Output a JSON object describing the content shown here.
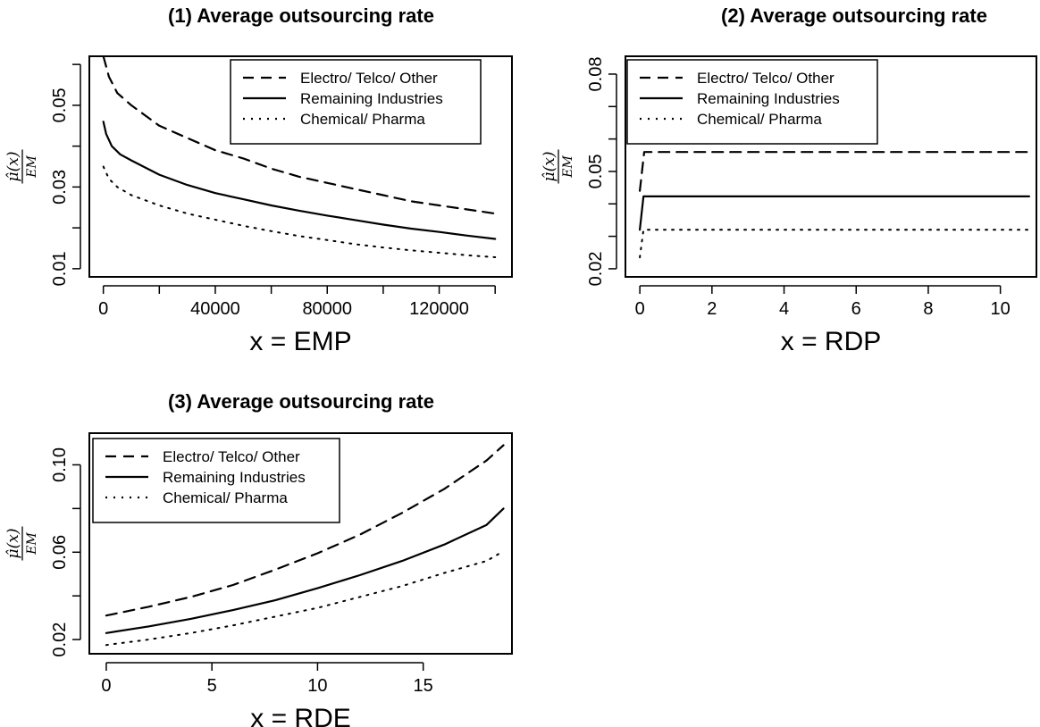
{
  "chart_data": [
    {
      "type": "line",
      "title": "(1) Average outsourcing rate",
      "xlabel": "x =  EMP",
      "ylabel": {
        "numerator": "μ̂(x)",
        "denominator": "EM"
      },
      "xlim": [
        -5000,
        146000
      ],
      "ylim": [
        0.008,
        0.062
      ],
      "xticks": [
        0,
        40000,
        80000,
        120000
      ],
      "xtick_labels": [
        "0",
        "40000",
        "80000",
        "120000"
      ],
      "xticks_minor": [
        20000,
        60000,
        100000,
        140000
      ],
      "yticks": [
        0.01,
        0.03,
        0.05
      ],
      "ytick_labels": [
        "0.01",
        "0.03",
        "0.05"
      ],
      "yticks_minor": [
        0.02,
        0.04,
        0.06
      ],
      "grid": false,
      "legend": {
        "position": "top-right",
        "entries": [
          "Electro/ Telco/ Other",
          "Remaining Industries",
          "Chemical/ Pharma"
        ]
      },
      "series": [
        {
          "name": "Electro/ Telco/ Other",
          "linestyle": "dashed",
          "x": [
            0,
            2000,
            5000,
            10000,
            20000,
            30000,
            40000,
            50000,
            60000,
            70000,
            80000,
            90000,
            100000,
            110000,
            120000,
            130000,
            140000
          ],
          "y": [
            0.062,
            0.057,
            0.053,
            0.05,
            0.045,
            0.042,
            0.039,
            0.037,
            0.0345,
            0.0325,
            0.031,
            0.0295,
            0.028,
            0.0265,
            0.0255,
            0.0245,
            0.0235
          ]
        },
        {
          "name": "Remaining Industries",
          "linestyle": "solid",
          "x": [
            0,
            1000,
            3000,
            6000,
            10000,
            20000,
            30000,
            40000,
            50000,
            60000,
            70000,
            80000,
            90000,
            100000,
            110000,
            120000,
            130000,
            140000
          ],
          "y": [
            0.046,
            0.043,
            0.04,
            0.038,
            0.0365,
            0.033,
            0.0305,
            0.0285,
            0.027,
            0.0255,
            0.0242,
            0.023,
            0.0219,
            0.0208,
            0.0198,
            0.019,
            0.0181,
            0.0173
          ]
        },
        {
          "name": "Chemical/ Pharma",
          "linestyle": "dotted",
          "x": [
            0,
            2000,
            5000,
            10000,
            20000,
            30000,
            40000,
            50000,
            60000,
            70000,
            80000,
            90000,
            100000,
            110000,
            120000,
            130000,
            140000
          ],
          "y": [
            0.035,
            0.032,
            0.03,
            0.028,
            0.0255,
            0.0235,
            0.022,
            0.0205,
            0.0192,
            0.018,
            0.017,
            0.016,
            0.0152,
            0.0145,
            0.0139,
            0.0133,
            0.0128
          ]
        }
      ]
    },
    {
      "type": "line",
      "title": "(2) Average outsourcing rate",
      "xlabel": "x =  RDP",
      "ylabel": {
        "numerator": "μ̂(x)",
        "denominator": "EM"
      },
      "xlim": [
        -0.4,
        11.0
      ],
      "ylim": [
        0.0175,
        0.0855
      ],
      "xticks": [
        0,
        2,
        4,
        6,
        8,
        10
      ],
      "xtick_labels": [
        "0",
        "2",
        "4",
        "6",
        "8",
        "10"
      ],
      "xticks_minor": [],
      "yticks": [
        0.02,
        0.05,
        0.08
      ],
      "ytick_labels": [
        "0.02",
        "0.05",
        "0.08"
      ],
      "yticks_minor": [
        0.03,
        0.04,
        0.06,
        0.07
      ],
      "grid": false,
      "legend": {
        "position": "top-left",
        "entries": [
          "Electro/ Telco/ Other",
          "Remaining Industries",
          "Chemical/ Pharma"
        ]
      },
      "series": [
        {
          "name": "Electro/ Telco/ Other",
          "linestyle": "dashed",
          "x": [
            0,
            0.12,
            10.8
          ],
          "y": [
            0.044,
            0.056,
            0.056
          ]
        },
        {
          "name": "Remaining Industries",
          "linestyle": "solid",
          "x": [
            0,
            0.1,
            10.8
          ],
          "y": [
            0.032,
            0.0423,
            0.0423
          ]
        },
        {
          "name": "Chemical/ Pharma",
          "linestyle": "dotted",
          "x": [
            0,
            0.1,
            10.8
          ],
          "y": [
            0.0235,
            0.032,
            0.032
          ]
        }
      ]
    },
    {
      "type": "line",
      "title": "(3) Average outsourcing rate",
      "xlabel": "x =  RDE",
      "ylabel": {
        "numerator": "μ̂(x)",
        "denominator": "EM"
      },
      "xlim": [
        -0.8,
        19.2
      ],
      "ylim": [
        0.0135,
        0.1145
      ],
      "xticks": [
        0,
        5,
        10,
        15
      ],
      "xtick_labels": [
        "0",
        "5",
        "10",
        "15"
      ],
      "xticks_minor": [],
      "yticks": [
        0.02,
        0.06,
        0.1
      ],
      "ytick_labels": [
        "0.02",
        "0.06",
        "0.10"
      ],
      "yticks_minor": [
        0.04,
        0.08
      ],
      "grid": false,
      "legend": {
        "position": "top-left",
        "entries": [
          "Electro/ Telco/ Other",
          "Remaining Industries",
          "Chemical/ Pharma"
        ]
      },
      "series": [
        {
          "name": "Electro/ Telco/ Other",
          "linestyle": "dashed",
          "x": [
            0,
            2,
            4,
            6,
            8,
            10,
            12,
            14,
            16,
            18,
            18.8
          ],
          "y": [
            0.031,
            0.035,
            0.0395,
            0.045,
            0.052,
            0.0595,
            0.068,
            0.078,
            0.089,
            0.102,
            0.109
          ]
        },
        {
          "name": "Remaining Industries",
          "linestyle": "solid",
          "x": [
            0,
            2,
            4,
            6,
            8,
            10,
            12,
            14,
            16,
            18,
            18.8
          ],
          "y": [
            0.023,
            0.026,
            0.0295,
            0.0335,
            0.038,
            0.0435,
            0.0495,
            0.056,
            0.0635,
            0.0725,
            0.08
          ]
        },
        {
          "name": "Chemical/ Pharma",
          "linestyle": "dotted",
          "x": [
            0,
            2,
            4,
            6,
            8,
            10,
            12,
            14,
            16,
            18,
            18.8
          ],
          "y": [
            0.0175,
            0.02,
            0.023,
            0.0265,
            0.0305,
            0.0345,
            0.0395,
            0.0445,
            0.0505,
            0.056,
            0.0605
          ]
        }
      ]
    }
  ],
  "colors": {
    "ink": "#000000",
    "background": "#ffffff"
  }
}
